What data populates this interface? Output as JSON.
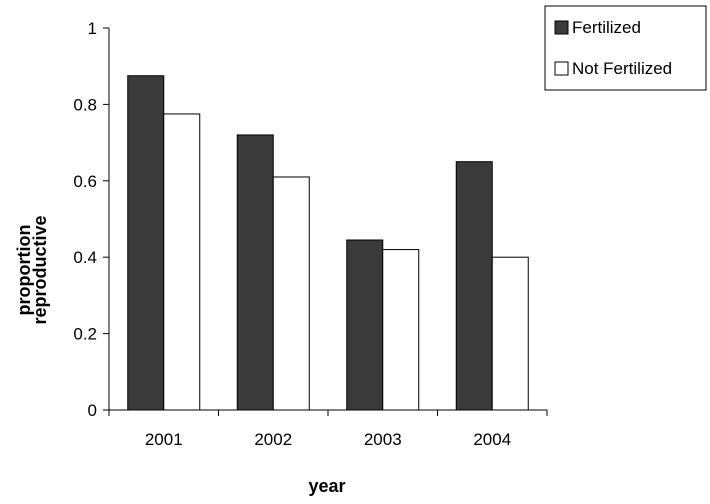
{
  "chart_data": {
    "type": "bar",
    "categories": [
      "2001",
      "2002",
      "2003",
      "2004"
    ],
    "series": [
      {
        "name": "Fertilized",
        "values": [
          0.875,
          0.72,
          0.445,
          0.65
        ]
      },
      {
        "name": "Not Fertilized",
        "values": [
          0.775,
          0.61,
          0.42,
          0.4
        ]
      }
    ],
    "xlabel": "year",
    "ylabel": "proportion reproductive",
    "ylabel_lines": [
      "proportion",
      "reproductive"
    ],
    "ylim": [
      0,
      1
    ],
    "yticks": [
      "0",
      "0.2",
      "0.4",
      "0.6",
      "0.8",
      "1"
    ],
    "grid": false,
    "legend_position": "top-right",
    "colors": {
      "Fertilized": "#3a3a3a",
      "Not Fertilized": "#ffffff",
      "outline": "#000000"
    }
  }
}
